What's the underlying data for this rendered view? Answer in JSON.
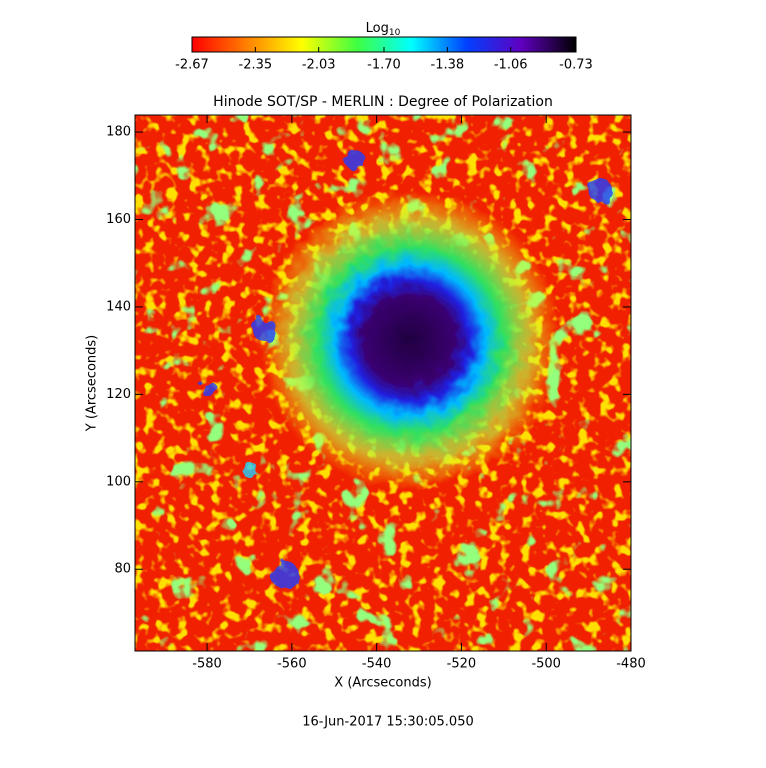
{
  "chart_data": {
    "type": "heatmap",
    "title": "Hinode SOT/SP - MERLIN : Degree of Polarization",
    "xlabel": "X (Arcseconds)",
    "ylabel": "Y (Arcseconds)",
    "xlim": [
      -597,
      -480
    ],
    "xticks": [
      -580,
      -560,
      -540,
      -520,
      -500,
      -480
    ],
    "ylim": [
      61.3,
      183.9
    ],
    "yticks": [
      80,
      100,
      120,
      140,
      160,
      180
    ],
    "colorbar_label": "Log",
    "colorbar_label_sub": "10",
    "clim": [
      -2.67,
      -0.73
    ],
    "cticks": [
      -2.67,
      -2.35,
      -2.03,
      {
        "value": -1.7,
        "label": "-1.70"
      },
      -1.38,
      -1.06,
      -0.73
    ],
    "colormap": [
      "#ff0000",
      "#ff8000",
      "#ffff00",
      "#40ff40",
      "#00ffff",
      "#0040ff",
      "#6000c0",
      "#000000"
    ],
    "date": "16-Jun-2017 15:30:05.050"
  }
}
